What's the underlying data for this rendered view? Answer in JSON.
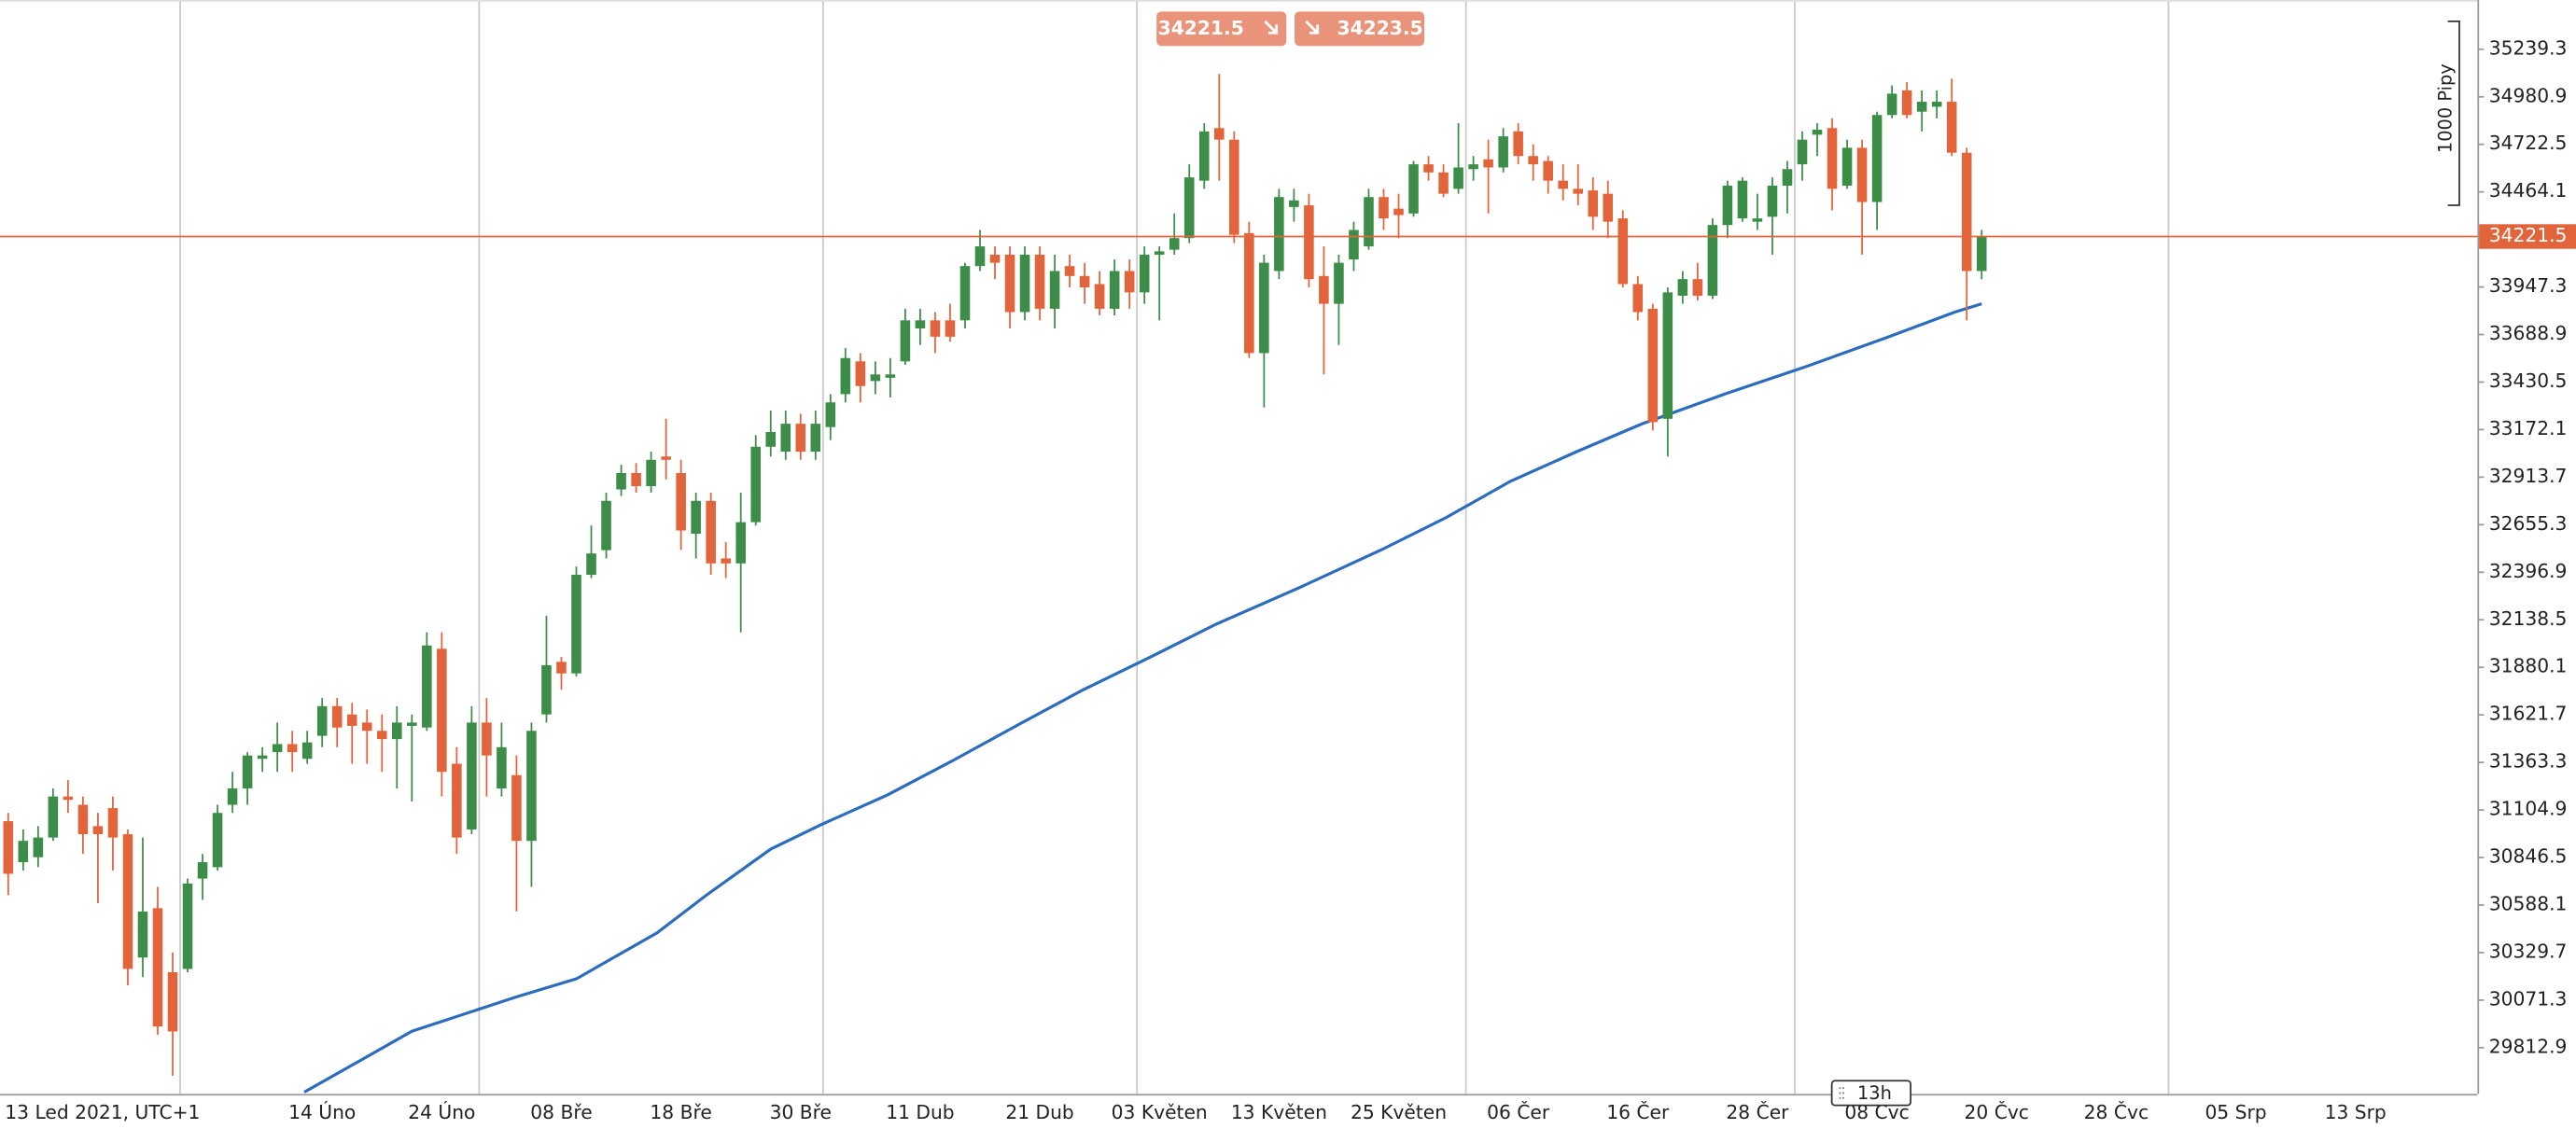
{
  "chart_data": {
    "type": "candlestick",
    "open": [
      31044,
      30821,
      30848,
      30955,
      31178,
      31133,
      31017,
      31115,
      30973,
      30303,
      30571,
      30223,
      30241,
      30732,
      30794,
      31133,
      31222,
      31383,
      31419,
      31463,
      31383,
      31508,
      31669,
      31624,
      31580,
      31535,
      31490,
      31562,
      31553,
      31981,
      31356,
      30999,
      31580,
      31222,
      31294,
      30937,
      31624,
      31910,
      31847,
      32383,
      32517,
      32847,
      32936,
      32865,
      33026,
      32936,
      32606,
      32785,
      32472,
      32445,
      32669,
      33079,
      33052,
      33204,
      33052,
      33186,
      33365,
      33543,
      33436,
      33454,
      33543,
      33722,
      33766,
      33766,
      33766,
      34061,
      34123,
      34123,
      33811,
      34123,
      33829,
      34061,
      34007,
      33963,
      33829,
      34034,
      33918,
      34123,
      34150,
      34213,
      34525,
      34811,
      34748,
      34240,
      33588,
      34034,
      34382,
      34391,
      34007,
      33856,
      34097,
      34168,
      34436,
      34373,
      34347,
      34614,
      34570,
      34481,
      34588,
      34641,
      34597,
      34793,
      34659,
      34632,
      34525,
      34481,
      34472,
      34454,
      34320,
      33963,
      33829,
      33231,
      33900,
      33990,
      33900,
      34284,
      34320,
      34302,
      34329,
      34498,
      34614,
      34775,
      34811,
      34498,
      34704,
      34409,
      34882,
      35016,
      34900,
      34927,
      34954,
      34677,
      34034
    ],
    "high": [
      31089,
      30999,
      31017,
      31222,
      31267,
      31178,
      31089,
      31178,
      30999,
      30955,
      30687,
      30330,
      30732,
      30866,
      31133,
      31312,
      31419,
      31446,
      31580,
      31535,
      31535,
      31713,
      31713,
      31687,
      31651,
      31624,
      31669,
      31624,
      32071,
      32071,
      31446,
      31669,
      31713,
      31580,
      31401,
      31580,
      32160,
      31937,
      32428,
      32651,
      32829,
      32981,
      32990,
      33052,
      33231,
      33008,
      32829,
      32829,
      32561,
      32829,
      33142,
      33276,
      33276,
      33258,
      33276,
      33365,
      33615,
      33588,
      33543,
      33561,
      33829,
      33829,
      33811,
      33856,
      34079,
      34257,
      34168,
      34168,
      34168,
      34168,
      34123,
      34123,
      34079,
      34034,
      34097,
      34097,
      34168,
      34168,
      34347,
      34614,
      34838,
      35105,
      34793,
      34302,
      34123,
      34481,
      34481,
      34454,
      34168,
      34123,
      34302,
      34481,
      34481,
      34454,
      34632,
      34659,
      34614,
      34838,
      34659,
      34748,
      34811,
      34838,
      34722,
      34659,
      34614,
      34614,
      34543,
      34525,
      34364,
      34007,
      33856,
      33945,
      34034,
      34079,
      34320,
      34525,
      34543,
      34454,
      34543,
      34632,
      34793,
      34838,
      34864,
      34748,
      34748,
      34900,
      35043,
      35061,
      35016,
      35016,
      35079,
      34704,
      34257
    ],
    "low": [
      30642,
      30776,
      30794,
      30937,
      31089,
      30866,
      30598,
      30776,
      30151,
      30196,
      29884,
      29660,
      30223,
      30616,
      30776,
      31089,
      31133,
      31312,
      31312,
      31312,
      31356,
      31446,
      31446,
      31356,
      31356,
      31312,
      31222,
      31151,
      31535,
      31178,
      30866,
      30973,
      31178,
      31178,
      30553,
      30687,
      31580,
      31758,
      31830,
      32365,
      32472,
      32811,
      32829,
      32829,
      32901,
      32517,
      32472,
      32383,
      32365,
      32071,
      32651,
      33026,
      33008,
      33008,
      33008,
      33115,
      33320,
      33320,
      33365,
      33347,
      33525,
      33632,
      33588,
      33650,
      33722,
      34034,
      33990,
      33722,
      33766,
      33766,
      33722,
      33945,
      33856,
      33793,
      33793,
      33829,
      33856,
      33766,
      34123,
      34186,
      34481,
      34525,
      34186,
      33561,
      33293,
      33990,
      34302,
      33945,
      33472,
      33632,
      34034,
      34150,
      34257,
      34213,
      34329,
      34525,
      34436,
      34454,
      34525,
      34347,
      34570,
      34614,
      34525,
      34454,
      34418,
      34391,
      34257,
      34213,
      33945,
      33766,
      33168,
      33026,
      33856,
      33874,
      33882,
      34213,
      34302,
      34257,
      34123,
      34347,
      34525,
      34659,
      34364,
      34481,
      34123,
      34257,
      34864,
      34864,
      34793,
      34864,
      34659,
      33766,
      33990
    ],
    "close": [
      30758,
      30937,
      30955,
      31178,
      31160,
      30973,
      30973,
      30955,
      30241,
      30553,
      29928,
      29901,
      30705,
      30821,
      31089,
      31222,
      31401,
      31401,
      31463,
      31419,
      31472,
      31669,
      31553,
      31562,
      31535,
      31490,
      31580,
      31580,
      31999,
      31312,
      30955,
      31580,
      31401,
      31446,
      30937,
      31535,
      31892,
      31847,
      32383,
      32499,
      32785,
      32936,
      32865,
      33008,
      33008,
      32624,
      32785,
      32445,
      32445,
      32669,
      33079,
      33159,
      33204,
      33052,
      33204,
      33320,
      33561,
      33409,
      33472,
      33472,
      33766,
      33766,
      33677,
      33677,
      34061,
      34168,
      34079,
      33811,
      34123,
      33829,
      34034,
      34007,
      33945,
      33829,
      34034,
      33918,
      34123,
      34141,
      34213,
      34543,
      34793,
      34748,
      34231,
      33588,
      34079,
      34436,
      34418,
      33990,
      33856,
      34079,
      34257,
      34436,
      34320,
      34338,
      34614,
      34570,
      34454,
      34597,
      34614,
      34597,
      34766,
      34659,
      34614,
      34525,
      34481,
      34454,
      34329,
      34302,
      33963,
      33811,
      33213,
      33918,
      33990,
      33900,
      34284,
      34498,
      34525,
      34320,
      34498,
      34588,
      34748,
      34802,
      34481,
      34704,
      34409,
      34882,
      34998,
      34882,
      34954,
      34954,
      34677,
      34034,
      34221.5
    ],
    "up_color": "#3b8d48",
    "down_color": "#e2643a",
    "series": [
      {
        "type": "line",
        "color": "#2c6cbf",
        "x": [
          19.8,
          27,
          34,
          38,
          43.4,
          46.7,
          51,
          54.4,
          58.8,
          63.2,
          67.6,
          71.9,
          76.4,
          80.8,
          86.3,
          91.8,
          96.2,
          100.5,
          104.9,
          109.3,
          114.8,
          120.3,
          125.8,
          130.2,
          132
        ],
        "values": [
          29571,
          29902,
          30089,
          30187,
          30437,
          30642,
          30892,
          31026,
          31186,
          31374,
          31570,
          31758,
          31936,
          32115,
          32311,
          32517,
          32695,
          32892,
          33052,
          33204,
          33365,
          33516,
          33677,
          33811,
          33856
        ]
      }
    ],
    "ylim": [
      29562,
      35507
    ],
    "yticks": [
      29812.9,
      30071.3,
      30329.7,
      30588.1,
      30846.5,
      31104.9,
      31363.3,
      31621.7,
      31880.1,
      32138.5,
      32396.9,
      32655.3,
      32913.7,
      33172.1,
      33430.5,
      33688.9,
      33947.3,
      34464.1,
      34722.5,
      34980.9,
      35239.3
    ],
    "xlim": [
      -0.55,
      165.16
    ],
    "xticks": [
      {
        "value": 0,
        "label": "13 Led 2021, UTC+1"
      },
      {
        "value": 21,
        "label": "14 Úno"
      },
      {
        "value": 29,
        "label": "24 Úno"
      },
      {
        "value": 37,
        "label": "08 Bře"
      },
      {
        "value": 45,
        "label": "18 Bře"
      },
      {
        "value": 53,
        "label": "30 Bře"
      },
      {
        "value": 61,
        "label": "11 Dub"
      },
      {
        "value": 69,
        "label": "21 Dub"
      },
      {
        "value": 77,
        "label": "03 Květen"
      },
      {
        "value": 85,
        "label": "13 Květen"
      },
      {
        "value": 93,
        "label": "25 Květen"
      },
      {
        "value": 101,
        "label": "06 Čer"
      },
      {
        "value": 109,
        "label": "16 Čer"
      },
      {
        "value": 117,
        "label": "28 Čer"
      },
      {
        "value": 125,
        "label": "08 Čvc"
      },
      {
        "value": 133,
        "label": "20 Čvc"
      },
      {
        "value": 141,
        "label": "28 Čvc"
      },
      {
        "value": 149,
        "label": "05 Srp"
      },
      {
        "value": 157,
        "label": "13 Srp"
      }
    ],
    "xgrid": [
      11.5,
      31.5,
      54.5,
      75.5,
      97.5,
      119.5,
      144.5
    ],
    "last_price": 34221.5,
    "sell_price": 34221.5,
    "buy_price": 34223.5,
    "pip_ruler": "1000 Pipy",
    "countdown": "13h"
  }
}
